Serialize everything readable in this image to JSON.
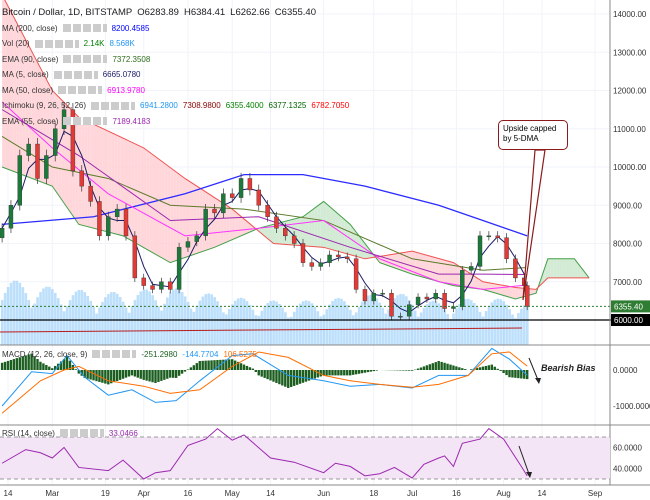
{
  "header": {
    "symbol": "Bitcoin / Dollar, 1D, BITSTAMP",
    "open": "O6283.89",
    "high": "H6384.41",
    "low": "L6262.66",
    "close": "C6355.40"
  },
  "indicators": [
    {
      "label": "MA (200, close)",
      "values": [
        {
          "v": "8200.4585",
          "c": "#0000ff"
        }
      ]
    },
    {
      "label": "Vol (20)",
      "values": [
        {
          "v": "2.14K",
          "c": "#008000"
        },
        {
          "v": "8.568K",
          "c": "#2196f3"
        }
      ]
    },
    {
      "label": "EMA (90, close)",
      "values": [
        {
          "v": "7372.3508",
          "c": "#2e6b1a"
        }
      ]
    },
    {
      "label": "MA (5, close)",
      "values": [
        {
          "v": "6665.0780",
          "c": "#1a1a66"
        }
      ]
    },
    {
      "label": "MA (50, close)",
      "values": [
        {
          "v": "6913.9780",
          "c": "#ff00ff"
        }
      ]
    },
    {
      "label": "Ichimoku (9, 26, 52, 26)",
      "values": [
        {
          "v": "6941.2800",
          "c": "#2196f3"
        },
        {
          "v": "7308.9800",
          "c": "#8b0000"
        },
        {
          "v": "6355.4000",
          "c": "#008000"
        },
        {
          "v": "6377.1325",
          "c": "#006400"
        },
        {
          "v": "6782.7050",
          "c": "#ff0000"
        }
      ]
    },
    {
      "label": "EMA (55, close)",
      "values": [
        {
          "v": "7189.4183",
          "c": "#9c27b0"
        }
      ]
    }
  ],
  "macd_legend": {
    "label": "MACD (12, 26, close, 9)",
    "values": [
      {
        "v": "-251.2980",
        "c": "#1b5e20"
      },
      {
        "v": "-144.7704",
        "c": "#2196f3"
      },
      {
        "v": "106.5275",
        "c": "#ff6d00"
      }
    ]
  },
  "rsi_legend": {
    "label": "RSI (14, close)",
    "value": "33.0466",
    "color": "#9c27b0"
  },
  "annotations": {
    "callout": "Upside capped by 5-DMA",
    "bias": "Bearish Bias"
  },
  "chart_data": {
    "type": "candlestick",
    "price_axis": {
      "ticks": [
        "14000.00",
        "13000.00",
        "12000.00",
        "11000.00",
        "10000.00",
        "9000.00",
        "8000.00",
        "7000.00"
      ],
      "last_price": "6355.40",
      "support": "6000.00",
      "range": [
        6000,
        14000
      ]
    },
    "macd_axis": {
      "ticks": [
        "0.0000",
        "-1000.0000"
      ]
    },
    "rsi_axis": {
      "ticks": [
        "60.0000",
        "40.0000"
      ],
      "bands": [
        30,
        70
      ]
    },
    "time_axis": [
      [
        "2018-02-14",
        "14"
      ],
      [
        "2018-03-01",
        "Mar"
      ],
      [
        "2018-03-19",
        "19"
      ],
      [
        "2018-04-01",
        "Apr"
      ],
      [
        "2018-04-16",
        "16"
      ],
      [
        "2018-05-01",
        "May"
      ],
      [
        "2018-05-14",
        "14"
      ],
      [
        "2018-06-01",
        "Jun"
      ],
      [
        "2018-06-18",
        "18"
      ],
      [
        "2018-07-01",
        "Jul"
      ],
      [
        "2018-07-16",
        "16"
      ],
      [
        "2018-08-01",
        "Aug"
      ],
      [
        "2018-08-14",
        "14"
      ],
      [
        "2018-09-01",
        "Sep"
      ]
    ],
    "closes": [
      [
        "2018-02-12",
        8400
      ],
      [
        "2018-02-15",
        9000
      ],
      [
        "2018-02-18",
        10300
      ],
      [
        "2018-02-21",
        10600
      ],
      [
        "2018-02-24",
        9700
      ],
      [
        "2018-02-27",
        10300
      ],
      [
        "2018-03-02",
        11000
      ],
      [
        "2018-03-05",
        11500
      ],
      [
        "2018-03-08",
        9900
      ],
      [
        "2018-03-11",
        9500
      ],
      [
        "2018-03-14",
        9100
      ],
      [
        "2018-03-17",
        8200
      ],
      [
        "2018-03-20",
        8700
      ],
      [
        "2018-03-23",
        8900
      ],
      [
        "2018-03-26",
        8200
      ],
      [
        "2018-03-29",
        7100
      ],
      [
        "2018-04-01",
        6900
      ],
      [
        "2018-04-04",
        6800
      ],
      [
        "2018-04-07",
        7000
      ],
      [
        "2018-04-10",
        6800
      ],
      [
        "2018-04-13",
        7900
      ],
      [
        "2018-04-16",
        8050
      ],
      [
        "2018-04-19",
        8200
      ],
      [
        "2018-04-22",
        8900
      ],
      [
        "2018-04-25",
        8800
      ],
      [
        "2018-04-28",
        9300
      ],
      [
        "2018-05-01",
        9200
      ],
      [
        "2018-05-04",
        9700
      ],
      [
        "2018-05-07",
        9400
      ],
      [
        "2018-05-10",
        9000
      ],
      [
        "2018-05-13",
        8700
      ],
      [
        "2018-05-16",
        8400
      ],
      [
        "2018-05-19",
        8200
      ],
      [
        "2018-05-22",
        8000
      ],
      [
        "2018-05-25",
        7500
      ],
      [
        "2018-05-28",
        7400
      ],
      [
        "2018-05-31",
        7500
      ],
      [
        "2018-06-03",
        7700
      ],
      [
        "2018-06-06",
        7650
      ],
      [
        "2018-06-09",
        7600
      ],
      [
        "2018-06-12",
        6800
      ],
      [
        "2018-06-15",
        6500
      ],
      [
        "2018-06-18",
        6700
      ],
      [
        "2018-06-21",
        6700
      ],
      [
        "2018-06-24",
        6100
      ],
      [
        "2018-06-27",
        6100
      ],
      [
        "2018-06-30",
        6400
      ],
      [
        "2018-07-03",
        6600
      ],
      [
        "2018-07-06",
        6550
      ],
      [
        "2018-07-09",
        6700
      ],
      [
        "2018-07-12",
        6300
      ],
      [
        "2018-07-15",
        6350
      ],
      [
        "2018-07-18",
        7300
      ],
      [
        "2018-07-21",
        7400
      ],
      [
        "2018-07-24",
        8200
      ],
      [
        "2018-07-27",
        8200
      ],
      [
        "2018-07-30",
        8150
      ],
      [
        "2018-08-02",
        7600
      ],
      [
        "2018-08-05",
        7100
      ],
      [
        "2018-08-08",
        6900
      ],
      [
        "2018-08-09",
        6355.4
      ]
    ],
    "ma200": [
      [
        "2018-02-12",
        8500
      ],
      [
        "2018-03-15",
        8700
      ],
      [
        "2018-04-15",
        9300
      ],
      [
        "2018-05-05",
        9800
      ],
      [
        "2018-05-25",
        9800
      ],
      [
        "2018-06-15",
        9500
      ],
      [
        "2018-07-10",
        9000
      ],
      [
        "2018-07-25",
        8600
      ],
      [
        "2018-08-09",
        8200
      ]
    ],
    "ema90": [
      [
        "2018-02-12",
        10800
      ],
      [
        "2018-03-01",
        10000
      ],
      [
        "2018-03-20",
        9700
      ],
      [
        "2018-04-10",
        9000
      ],
      [
        "2018-05-05",
        8900
      ],
      [
        "2018-06-01",
        8600
      ],
      [
        "2018-07-01",
        7600
      ],
      [
        "2018-07-25",
        7300
      ],
      [
        "2018-08-09",
        7372
      ]
    ],
    "ma50": [
      [
        "2018-02-12",
        11700
      ],
      [
        "2018-03-01",
        10500
      ],
      [
        "2018-03-20",
        9300
      ],
      [
        "2018-04-15",
        8200
      ],
      [
        "2018-05-10",
        8400
      ],
      [
        "2018-06-01",
        8600
      ],
      [
        "2018-06-20",
        7600
      ],
      [
        "2018-07-10",
        7000
      ],
      [
        "2018-07-25",
        6800
      ],
      [
        "2018-08-09",
        6914
      ]
    ],
    "ema55": [
      [
        "2018-02-12",
        11500
      ],
      [
        "2018-03-10",
        10300
      ],
      [
        "2018-04-10",
        8600
      ],
      [
        "2018-05-10",
        8700
      ],
      [
        "2018-06-10",
        7900
      ],
      [
        "2018-07-10",
        7200
      ],
      [
        "2018-07-25",
        7200
      ],
      [
        "2018-08-09",
        7189
      ]
    ],
    "ichimoku_span_a": [
      [
        "2018-02-12",
        10000
      ],
      [
        "2018-03-01",
        9500
      ],
      [
        "2018-03-10",
        8500
      ],
      [
        "2018-03-25",
        8200
      ],
      [
        "2018-04-10",
        7500
      ],
      [
        "2018-04-25",
        7900
      ],
      [
        "2018-05-10",
        8400
      ],
      [
        "2018-05-25",
        8700
      ],
      [
        "2018-06-01",
        9100
      ],
      [
        "2018-06-10",
        8500
      ],
      [
        "2018-06-20",
        7500
      ],
      [
        "2018-07-01",
        7200
      ],
      [
        "2018-07-15",
        6900
      ],
      [
        "2018-07-25",
        6800
      ],
      [
        "2018-08-05",
        6550
      ],
      [
        "2018-08-12",
        6700
      ],
      [
        "2018-08-16",
        7600
      ],
      [
        "2018-08-25",
        7600
      ],
      [
        "2018-08-30",
        7100
      ]
    ],
    "ichimoku_span_b": [
      [
        "2018-02-12",
        14500
      ],
      [
        "2018-03-01",
        12000
      ],
      [
        "2018-03-10",
        11300
      ],
      [
        "2018-04-01",
        10500
      ],
      [
        "2018-04-15",
        9700
      ],
      [
        "2018-05-01",
        8900
      ],
      [
        "2018-05-15",
        8000
      ],
      [
        "2018-06-01",
        7900
      ],
      [
        "2018-06-15",
        7600
      ],
      [
        "2018-07-01",
        7800
      ],
      [
        "2018-07-15",
        7500
      ],
      [
        "2018-07-25",
        7000
      ],
      [
        "2018-08-05",
        6850
      ],
      [
        "2018-08-12",
        6800
      ],
      [
        "2018-08-16",
        7100
      ],
      [
        "2018-08-30",
        7100
      ]
    ],
    "volume_k": [
      [
        "2018-02-12",
        14
      ],
      [
        "2018-03-01",
        12
      ],
      [
        "2018-03-20",
        11
      ],
      [
        "2018-04-10",
        12
      ],
      [
        "2018-05-01",
        10
      ],
      [
        "2018-05-20",
        9
      ],
      [
        "2018-06-10",
        10
      ],
      [
        "2018-06-25",
        11
      ],
      [
        "2018-07-10",
        9
      ],
      [
        "2018-07-25",
        10
      ],
      [
        "2018-08-09",
        9
      ]
    ],
    "macd": [
      [
        "2018-02-12",
        -1000
      ],
      [
        "2018-02-22",
        -50
      ],
      [
        "2018-03-01",
        -100
      ],
      [
        "2018-03-06",
        400
      ],
      [
        "2018-03-12",
        -200
      ],
      [
        "2018-03-20",
        -700
      ],
      [
        "2018-03-28",
        -550
      ],
      [
        "2018-04-05",
        -900
      ],
      [
        "2018-04-12",
        -850
      ],
      [
        "2018-04-20",
        -300
      ],
      [
        "2018-05-01",
        400
      ],
      [
        "2018-05-08",
        450
      ],
      [
        "2018-05-20",
        -150
      ],
      [
        "2018-06-01",
        -300
      ],
      [
        "2018-06-10",
        -450
      ],
      [
        "2018-06-20",
        -400
      ],
      [
        "2018-07-01",
        -500
      ],
      [
        "2018-07-10",
        -150
      ],
      [
        "2018-07-20",
        -150
      ],
      [
        "2018-07-28",
        600
      ],
      [
        "2018-08-03",
        300
      ],
      [
        "2018-08-09",
        -145
      ]
    ],
    "signal": [
      [
        "2018-02-12",
        -1200
      ],
      [
        "2018-02-25",
        -300
      ],
      [
        "2018-03-05",
        0
      ],
      [
        "2018-03-10",
        100
      ],
      [
        "2018-03-20",
        -300
      ],
      [
        "2018-04-01",
        -450
      ],
      [
        "2018-04-10",
        -650
      ],
      [
        "2018-04-20",
        -550
      ],
      [
        "2018-05-01",
        100
      ],
      [
        "2018-05-10",
        500
      ],
      [
        "2018-05-20",
        350
      ],
      [
        "2018-06-01",
        -150
      ],
      [
        "2018-06-10",
        -300
      ],
      [
        "2018-06-20",
        -400
      ],
      [
        "2018-07-01",
        -480
      ],
      [
        "2018-07-10",
        -400
      ],
      [
        "2018-07-20",
        -150
      ],
      [
        "2018-07-28",
        450
      ],
      [
        "2018-08-03",
        500
      ],
      [
        "2018-08-09",
        107
      ]
    ],
    "rsi": [
      [
        "2018-02-12",
        45
      ],
      [
        "2018-02-20",
        58
      ],
      [
        "2018-02-25",
        55
      ],
      [
        "2018-03-01",
        50
      ],
      [
        "2018-03-05",
        60
      ],
      [
        "2018-03-10",
        41
      ],
      [
        "2018-03-20",
        38
      ],
      [
        "2018-03-25",
        48
      ],
      [
        "2018-04-01",
        30
      ],
      [
        "2018-04-05",
        36
      ],
      [
        "2018-04-10",
        38
      ],
      [
        "2018-04-16",
        62
      ],
      [
        "2018-04-22",
        68
      ],
      [
        "2018-04-26",
        78
      ],
      [
        "2018-05-01",
        67
      ],
      [
        "2018-05-05",
        72
      ],
      [
        "2018-05-14",
        50
      ],
      [
        "2018-05-22",
        46
      ],
      [
        "2018-06-01",
        36
      ],
      [
        "2018-06-05",
        45
      ],
      [
        "2018-06-10",
        42
      ],
      [
        "2018-06-15",
        33
      ],
      [
        "2018-06-20",
        35
      ],
      [
        "2018-06-25",
        41
      ],
      [
        "2018-07-01",
        31
      ],
      [
        "2018-07-05",
        44
      ],
      [
        "2018-07-10",
        50
      ],
      [
        "2018-07-12",
        52
      ],
      [
        "2018-07-15",
        42
      ],
      [
        "2018-07-18",
        64
      ],
      [
        "2018-07-24",
        68
      ],
      [
        "2018-07-27",
        78
      ],
      [
        "2018-08-01",
        68
      ],
      [
        "2018-08-04",
        55
      ],
      [
        "2018-08-07",
        42
      ],
      [
        "2018-08-09",
        33
      ]
    ],
    "colors": {
      "up": "#26a69a",
      "up_fill": "#1b7a3a",
      "down": "#e53935",
      "ma200": "#2b2bff",
      "ema90": "#5d7a2a",
      "ma50": "#ff33ff",
      "ema55": "#9c27b0",
      "ma5": "#1a1a66",
      "cloud_green": "#c8e6c9",
      "cloud_red": "#ffcdd2",
      "macd": "#2196f3",
      "signal": "#ff6d00",
      "hist": "#1b5e20",
      "rsi": "#9c27b0"
    }
  }
}
